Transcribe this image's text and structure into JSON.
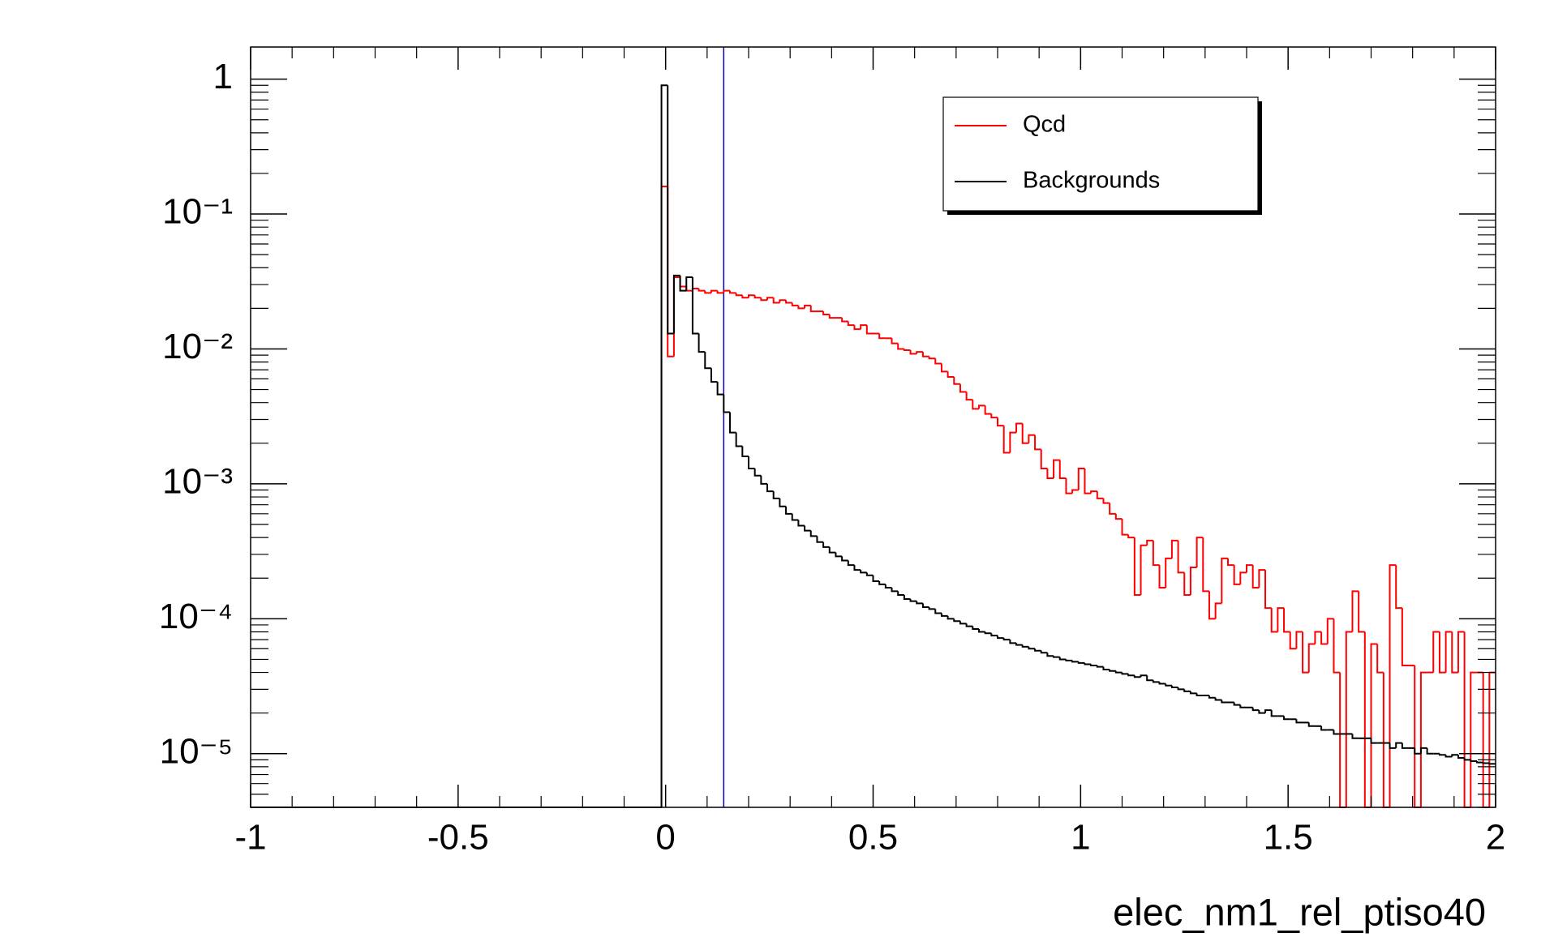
{
  "chart_data": {
    "type": "histogram",
    "x_label": "elec_nm1_rel_ptiso40",
    "log_y": true,
    "grid": false,
    "legend_position": "upper-right",
    "xlim": [
      -1,
      2
    ],
    "ylim": [
      4e-06,
      1.73
    ],
    "xticks": [
      -1,
      -0.5,
      0,
      0.5,
      1,
      1.5,
      2
    ],
    "yticks": [
      {
        "value": 1,
        "label": "1"
      },
      {
        "value": 0.1,
        "label": "10⁻¹"
      },
      {
        "value": 0.01,
        "label": "10⁻²"
      },
      {
        "value": 0.001,
        "label": "10⁻³"
      },
      {
        "value": 0.0001,
        "label": "10⁻⁴"
      },
      {
        "value": 1e-05,
        "label": "10⁻⁵"
      }
    ],
    "cut_line": {
      "x": 0.14,
      "color": "#0000cc"
    },
    "bins": [
      -1,
      -0.01,
      0.005,
      0.02,
      0.035,
      0.05,
      0.065,
      0.08,
      0.095,
      0.11,
      0.125,
      0.14,
      0.155,
      0.17,
      0.185,
      0.2,
      0.215,
      0.23,
      0.245,
      0.26,
      0.275,
      0.29,
      0.305,
      0.32,
      0.335,
      0.35,
      0.365,
      0.38,
      0.395,
      0.41,
      0.425,
      0.44,
      0.455,
      0.47,
      0.485,
      0.5,
      0.515,
      0.53,
      0.545,
      0.56,
      0.575,
      0.59,
      0.605,
      0.62,
      0.635,
      0.65,
      0.665,
      0.68,
      0.695,
      0.71,
      0.725,
      0.74,
      0.755,
      0.77,
      0.785,
      0.8,
      0.815,
      0.83,
      0.845,
      0.86,
      0.875,
      0.89,
      0.905,
      0.92,
      0.935,
      0.95,
      0.965,
      0.98,
      0.995,
      1.01,
      1.025,
      1.04,
      1.055,
      1.07,
      1.085,
      1.1,
      1.115,
      1.13,
      1.145,
      1.16,
      1.175,
      1.19,
      1.205,
      1.22,
      1.235,
      1.25,
      1.265,
      1.28,
      1.295,
      1.31,
      1.325,
      1.34,
      1.355,
      1.37,
      1.385,
      1.4,
      1.415,
      1.43,
      1.445,
      1.46,
      1.475,
      1.49,
      1.505,
      1.52,
      1.535,
      1.55,
      1.565,
      1.58,
      1.595,
      1.61,
      1.625,
      1.64,
      1.655,
      1.67,
      1.685,
      1.7,
      1.715,
      1.73,
      1.745,
      1.76,
      1.775,
      1.79,
      1.805,
      1.82,
      1.835,
      1.85,
      1.865,
      1.88,
      1.895,
      1.91,
      1.925,
      1.94,
      1.955,
      1.97,
      1.985,
      2.0
    ],
    "series": [
      {
        "name": "Qcd",
        "color": "#ff0000",
        "values": [
          0,
          0.16,
          0.0088,
          0.034,
          0.029,
          0.027,
          0.028,
          0.027,
          0.026,
          0.027,
          0.026,
          0.027,
          0.026,
          0.025,
          0.024,
          0.025,
          0.024,
          0.023,
          0.024,
          0.022,
          0.023,
          0.022,
          0.021,
          0.02,
          0.021,
          0.019,
          0.019,
          0.018,
          0.017,
          0.017,
          0.016,
          0.015,
          0.014,
          0.015,
          0.013,
          0.013,
          0.012,
          0.012,
          0.011,
          0.01,
          0.0098,
          0.0092,
          0.0095,
          0.0088,
          0.0085,
          0.0078,
          0.0068,
          0.0062,
          0.0055,
          0.0048,
          0.0042,
          0.0036,
          0.0038,
          0.0033,
          0.0031,
          0.0027,
          0.0017,
          0.0024,
          0.0028,
          0.002,
          0.0023,
          0.0018,
          0.0013,
          0.0011,
          0.0015,
          0.0011,
          0.00085,
          0.0009,
          0.0013,
          0.00085,
          0.00088,
          0.00078,
          0.00072,
          0.0006,
          0.00055,
          0.00042,
          0.0004,
          0.00015,
          0.00035,
          0.00038,
          0.00025,
          0.00017,
          0.00028,
          0.00038,
          0.00022,
          0.00015,
          0.00024,
          0.0004,
          0.00016,
          0.0001,
          0.00013,
          0.00028,
          0.00025,
          0.00018,
          0.00022,
          0.00025,
          0.00017,
          0.00023,
          0.00012,
          8e-05,
          0.00012,
          8e-05,
          6e-05,
          8e-05,
          4e-05,
          6.5e-05,
          8e-05,
          6.5e-05,
          0.0001,
          4e-05,
          0,
          8e-05,
          0.00016,
          8e-05,
          0,
          6.5e-05,
          4e-05,
          0,
          0.00025,
          0.00012,
          4.5e-05,
          4.5e-05,
          0,
          4e-05,
          4e-05,
          8e-05,
          4e-05,
          8e-05,
          4e-05,
          8e-05,
          0,
          4e-05,
          4e-05,
          0,
          4e-05
        ]
      },
      {
        "name": "Backgrounds",
        "color": "#000000",
        "values": [
          0,
          0.9,
          0.013,
          0.035,
          0.027,
          0.034,
          0.013,
          0.0095,
          0.0072,
          0.0057,
          0.0046,
          0.0034,
          0.0024,
          0.0019,
          0.0016,
          0.0013,
          0.00115,
          0.001,
          0.00088,
          0.00078,
          0.00068,
          0.0006,
          0.00054,
          0.00049,
          0.00045,
          0.00041,
          0.00037,
          0.00034,
          0.00031,
          0.00029,
          0.00027,
          0.00025,
          0.00023,
          0.00022,
          0.00021,
          0.00019,
          0.00018,
          0.00017,
          0.00016,
          0.00015,
          0.00014,
          0.000135,
          0.00013,
          0.000122,
          0.000118,
          0.00011,
          0.000105,
          0.0001,
          9.6e-05,
          9.2e-05,
          8.8e-05,
          8.4e-05,
          8e-05,
          7.8e-05,
          7.5e-05,
          7.2e-05,
          7e-05,
          6.6e-05,
          6.4e-05,
          6.2e-05,
          6e-05,
          5.8e-05,
          5.6e-05,
          5.3e-05,
          5.2e-05,
          5e-05,
          4.9e-05,
          4.8e-05,
          4.7e-05,
          4.6e-05,
          4.5e-05,
          4.4e-05,
          4.2e-05,
          4.1e-05,
          4e-05,
          3.9e-05,
          3.8e-05,
          3.7e-05,
          3.8e-05,
          3.5e-05,
          3.4e-05,
          3.3e-05,
          3.2e-05,
          3.1e-05,
          3e-05,
          2.9e-05,
          2.8e-05,
          2.7e-05,
          2.7e-05,
          2.6e-05,
          2.5e-05,
          2.4e-05,
          2.4e-05,
          2.3e-05,
          2.2e-05,
          2.2e-05,
          2.1e-05,
          2e-05,
          2.1e-05,
          1.9e-05,
          1.9e-05,
          1.8e-05,
          1.8e-05,
          1.7e-05,
          1.7e-05,
          1.6e-05,
          1.6e-05,
          1.5e-05,
          1.5e-05,
          1.4e-05,
          1.4e-05,
          1.4e-05,
          1.3e-05,
          1.3e-05,
          1.3e-05,
          1.2e-05,
          1.2e-05,
          1.2e-05,
          1.1e-05,
          1.2e-05,
          1.1e-05,
          1.1e-05,
          1e-05,
          1.1e-05,
          1e-05,
          1e-05,
          9.8e-06,
          9.5e-06,
          9.8e-06,
          9.3e-06,
          9e-06,
          8.8e-06,
          8.6e-06,
          8.5e-06,
          8.4e-06
        ]
      }
    ]
  }
}
